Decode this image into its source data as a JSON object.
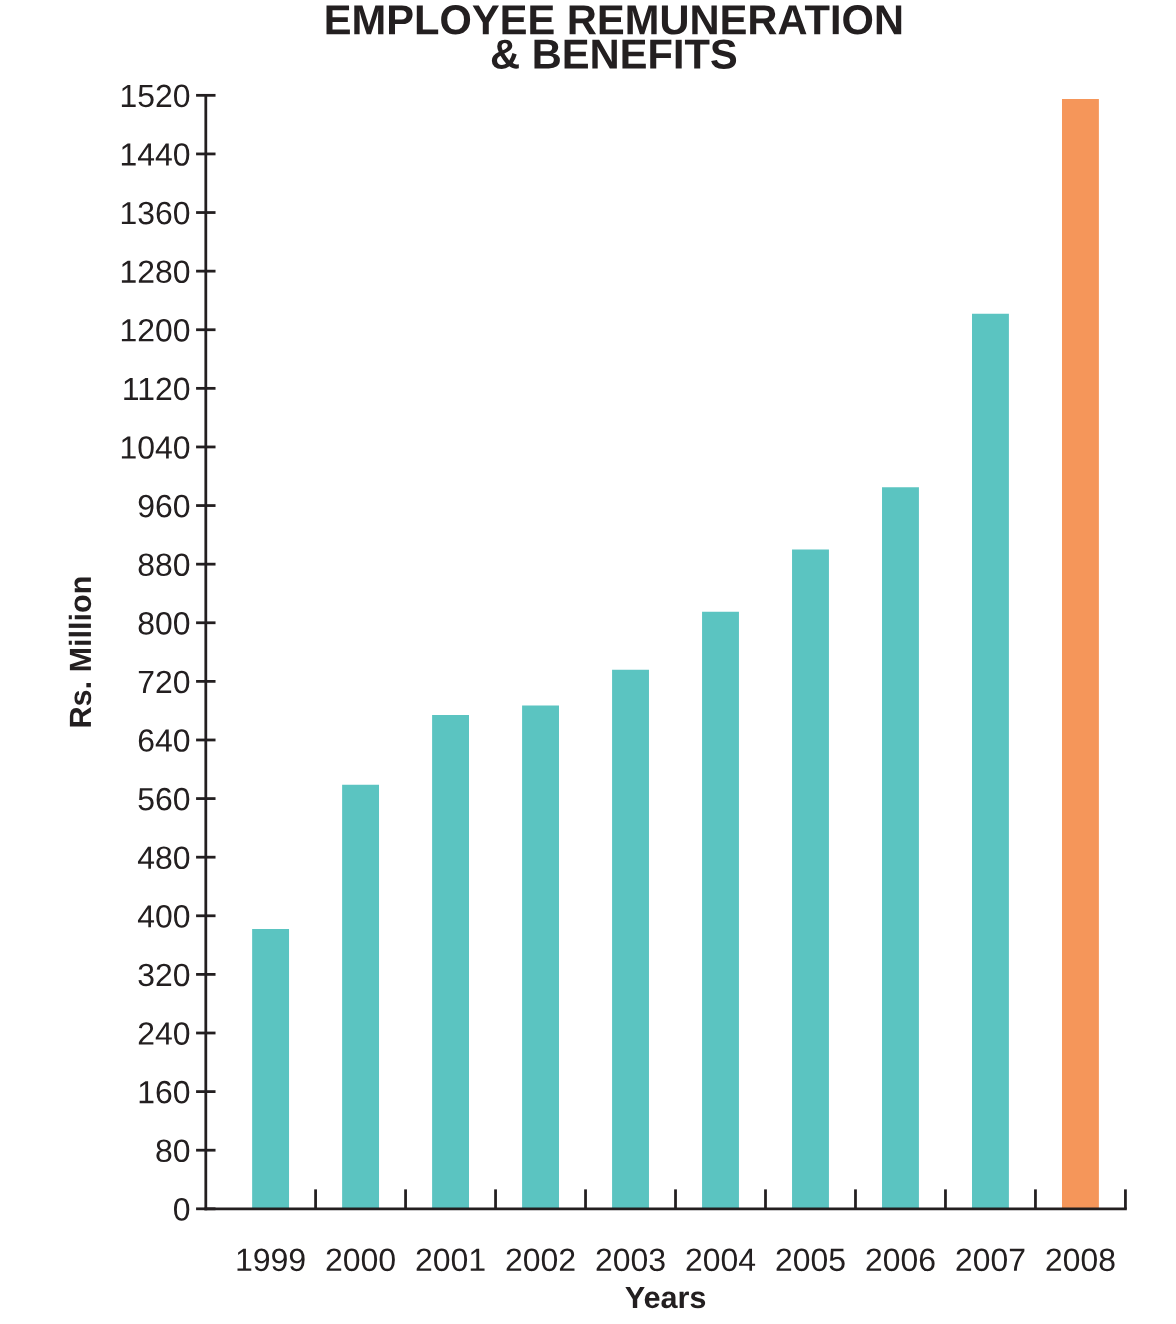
{
  "chart_data": {
    "type": "bar",
    "title": "EMPLOYEE REMUNERATION\n& BENEFITS",
    "xlabel": "Years",
    "ylabel": "Rs. Million",
    "categories": [
      "1999",
      "2000",
      "2001",
      "2002",
      "2003",
      "2004",
      "2005",
      "2006",
      "2007",
      "2008"
    ],
    "values": [
      382,
      579,
      674,
      687,
      736,
      815,
      900,
      985,
      1222,
      1515
    ],
    "colors": [
      "#5bc4c1",
      "#5bc4c1",
      "#5bc4c1",
      "#5bc4c1",
      "#5bc4c1",
      "#5bc4c1",
      "#5bc4c1",
      "#5bc4c1",
      "#5bc4c1",
      "#f5965a"
    ],
    "ylim": [
      0,
      1520
    ],
    "yticks": [
      0,
      80,
      160,
      240,
      320,
      400,
      480,
      560,
      640,
      720,
      800,
      880,
      960,
      1040,
      1120,
      1200,
      1280,
      1360,
      1440,
      1520
    ],
    "grid": false,
    "legend": false
  }
}
